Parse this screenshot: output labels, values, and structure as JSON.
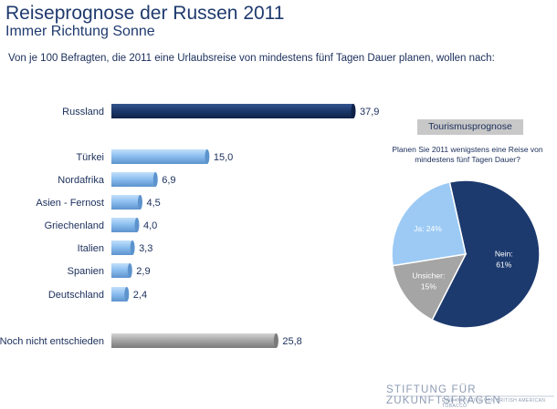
{
  "header": {
    "title": "Reiseprognose der Russen 2011",
    "subtitle": "Immer Richtung Sonne",
    "question": "Von je 100 Befragten, die 2011 eine Urlaubsreise von mindestens fünf Tagen Dauer planen, wollen nach:"
  },
  "chart_data": [
    {
      "type": "bar",
      "orientation": "horizontal",
      "categories": [
        "Russland",
        "Türkei",
        "Nordafrika",
        "Asien - Fernost",
        "Griechenland",
        "Italien",
        "Spanien",
        "Deutschland",
        "Noch nicht entschieden"
      ],
      "values": [
        37.9,
        15.0,
        6.9,
        4.5,
        4.0,
        3.3,
        2.9,
        2.4,
        25.8
      ],
      "value_labels": [
        "37,9",
        "15,0",
        "6,9",
        "4,5",
        "4,0",
        "3,3",
        "2,9",
        "2,4",
        "25,8"
      ],
      "colors": [
        "#1c3a6e",
        "#8ec0f0",
        "#8ec0f0",
        "#8ec0f0",
        "#8ec0f0",
        "#8ec0f0",
        "#8ec0f0",
        "#8ec0f0",
        "#a8a8a8"
      ]
    },
    {
      "type": "pie",
      "badge": "Tourismusprognose",
      "title": "Planen Sie 2011 wenigstens eine Reise von mindestens fünf Tagen Dauer?",
      "slices": [
        {
          "label": "Nein:",
          "value_label": "61%",
          "value": 61,
          "color": "#1c3a6e",
          "text_color": "#ffffff"
        },
        {
          "label": "Unsicher:",
          "value_label": "15%",
          "value": 15,
          "color": "#a5a5a5",
          "text_color": "#ffffff"
        },
        {
          "label": "Ja: 24%",
          "value_label": "",
          "value": 24,
          "color": "#9ccaf5",
          "text_color": "#ffffff"
        }
      ]
    }
  ],
  "footer": {
    "logo_main": "STIFTUNG FÜR ZUKUNFTSFRAGEN",
    "logo_sub": "EINE INITIATIVE VON BRITISH AMERICAN TOBACCO"
  }
}
